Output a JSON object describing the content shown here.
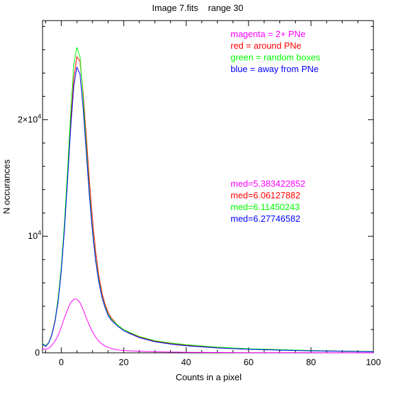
{
  "chart_data": {
    "type": "line",
    "title": "Image 7.fits    range 30",
    "xlabel": "Counts in a pixel",
    "ylabel": "N occurances",
    "xlim": [
      -6,
      100
    ],
    "ylim": [
      0,
      28500
    ],
    "x_ticks": [
      {
        "value": 0,
        "label": "0"
      },
      {
        "value": 20,
        "label": "20"
      },
      {
        "value": 40,
        "label": "40"
      },
      {
        "value": 60,
        "label": "60"
      },
      {
        "value": 80,
        "label": "80"
      },
      {
        "value": 100,
        "label": "100"
      }
    ],
    "y_ticks": [
      {
        "value": 0,
        "label": "0"
      },
      {
        "value": 10000,
        "label": "10",
        "exp": "4",
        "prefix": ""
      },
      {
        "value": 20000,
        "label": "10",
        "exp": "4",
        "prefix": "2×"
      }
    ],
    "series": [
      {
        "name": "magenta = 2+ PNe",
        "median_label": "med=5.383422852",
        "color": "#ff00ff",
        "x": [
          -6,
          -5,
          -4,
          -3,
          -2,
          -1,
          0,
          1,
          2,
          3,
          4,
          5,
          6,
          7,
          8,
          9,
          10,
          11,
          12,
          13,
          14,
          16,
          18,
          20,
          25,
          30,
          40,
          50,
          60,
          80,
          100
        ],
        "y": [
          350,
          300,
          400,
          650,
          1000,
          1500,
          2200,
          3000,
          3700,
          4300,
          4600,
          4600,
          4300,
          3700,
          3000,
          2350,
          1800,
          1350,
          1000,
          760,
          580,
          370,
          260,
          200,
          130,
          90,
          50,
          30,
          20,
          10,
          5
        ]
      },
      {
        "name": "red = around PNe",
        "median_label": "med=6.06127882",
        "color": "#ff0000",
        "x": [
          -6,
          -5,
          -4,
          -3,
          -2,
          -1,
          0,
          1,
          2,
          3,
          4,
          5,
          6,
          7,
          8,
          9,
          10,
          11,
          12,
          13,
          14,
          15,
          16,
          18,
          20,
          22,
          25,
          30,
          35,
          40,
          50,
          60,
          70,
          80,
          90,
          100
        ],
        "y": [
          800,
          600,
          900,
          1600,
          2800,
          4600,
          7200,
          10800,
          15200,
          19800,
          23500,
          25400,
          25000,
          22300,
          18600,
          14800,
          11400,
          8700,
          6700,
          5200,
          4200,
          3500,
          3000,
          2400,
          2000,
          1700,
          1350,
          1000,
          800,
          650,
          450,
          330,
          250,
          190,
          140,
          100
        ]
      },
      {
        "name": "green = random boxes",
        "median_label": "med=6.11450243",
        "color": "#00ff00",
        "x": [
          -6,
          -5,
          -4,
          -3,
          -2,
          -1,
          0,
          1,
          2,
          3,
          4,
          5,
          6,
          7,
          8,
          9,
          10,
          11,
          12,
          13,
          14,
          15,
          16,
          18,
          20,
          22,
          25,
          30,
          35,
          40,
          50,
          60,
          70,
          80,
          90,
          100
        ],
        "y": [
          800,
          600,
          900,
          1600,
          2800,
          4700,
          7400,
          11100,
          15700,
          20600,
          24700,
          26200,
          25400,
          21900,
          17800,
          13900,
          10600,
          8100,
          6300,
          4900,
          4000,
          3300,
          2900,
          2400,
          2000,
          1750,
          1400,
          1050,
          850,
          700,
          480,
          350,
          270,
          200,
          150,
          110
        ]
      },
      {
        "name": "blue = away from PNe",
        "median_label": "med=6.27746582",
        "color": "#0000ff",
        "x": [
          -6,
          -5,
          -4,
          -3,
          -2,
          -1,
          0,
          1,
          2,
          3,
          4,
          5,
          6,
          7,
          8,
          9,
          10,
          11,
          12,
          13,
          14,
          15,
          16,
          18,
          20,
          22,
          25,
          30,
          35,
          40,
          50,
          60,
          70,
          80,
          90,
          100
        ],
        "y": [
          750,
          550,
          850,
          1550,
          2700,
          4400,
          7000,
          10500,
          14800,
          19200,
          22900,
          24500,
          23900,
          21000,
          17200,
          13500,
          10300,
          7900,
          6100,
          4800,
          3900,
          3200,
          2800,
          2300,
          1900,
          1650,
          1300,
          950,
          750,
          600,
          420,
          300,
          230,
          170,
          130,
          90
        ]
      }
    ]
  }
}
